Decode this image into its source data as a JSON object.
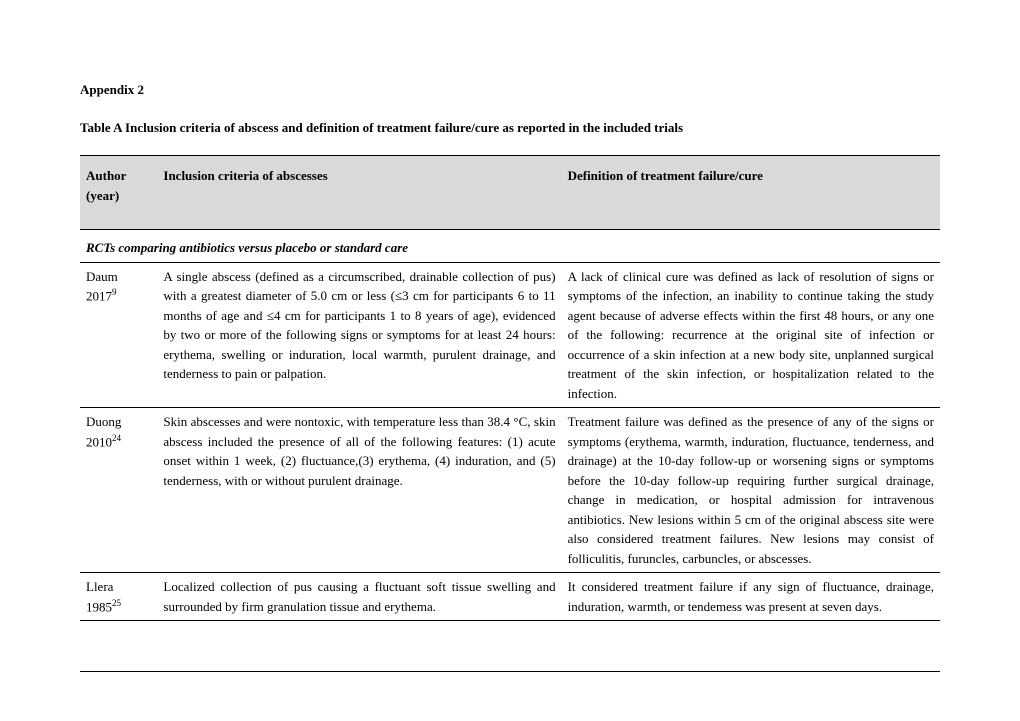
{
  "appendix": "Appendix 2",
  "caption": "Table A Inclusion criteria of abscess and definition of treatment failure/cure as reported in the included trials",
  "columns": {
    "author": "Author (year)",
    "inclusion": "Inclusion criteria of abscesses",
    "definition": "Definition of treatment failure/cure"
  },
  "section": "RCTs comparing antibiotics versus placebo or standard care",
  "rows": [
    {
      "author": "Daum 2017",
      "ref": "9",
      "inclusion": "A single abscess (defined as a circumscribed, drainable collection of pus) with a greatest diameter of 5.0 cm or less (≤3 cm for participants 6 to 11 months of age and  ≤4 cm for participants 1 to 8 years of age), evidenced by two or more of the following signs or symptoms for at least 24 hours: erythema, swelling or induration, local warmth, purulent drainage, and tenderness to pain or palpation.",
      "definition": "A lack of clinical cure was defined as lack of resolution of signs or symptoms of the infection, an inability to continue taking the study agent because of adverse effects within the first 48 hours, or any one of the following: recurrence at the original site of infection or occurrence of a skin infection at a new body site, unplanned surgical treatment of the skin infection, or hospitalization related to the infection."
    },
    {
      "author": "Duong 2010",
      "ref": "24",
      "inclusion": "Skin abscesses and were nontoxic, with temperature less than 38.4 °C, skin abscess included the presence of all of the following features: (1) acute onset within 1 week, (2) fluctuance,(3) erythema, (4) induration, and (5) tenderness, with or without purulent drainage.",
      "definition": "Treatment failure was defined as the presence of any of the signs or symptoms (erythema, warmth, induration, fluctuance, tenderness, and drainage) at the 10-day follow-up or worsening signs or symptoms before the 10-day follow-up requiring further surgical drainage, change in medication, or hospital admission for intravenous antibiotics. New lesions within 5 cm of the original abscess site were also considered treatment failures. New lesions may consist of folliculitis, furuncles, carbuncles, or abscesses."
    },
    {
      "author": "Llera 1985",
      "ref": "25",
      "inclusion": "Localized collection of pus causing a fluctuant soft tissue swelling and surrounded by firm granulation tissue and erythema.",
      "definition": "It considered treatment failure if any sign of fluctuance, drainage, induration, warmth, or tendemess was present at seven days."
    }
  ]
}
